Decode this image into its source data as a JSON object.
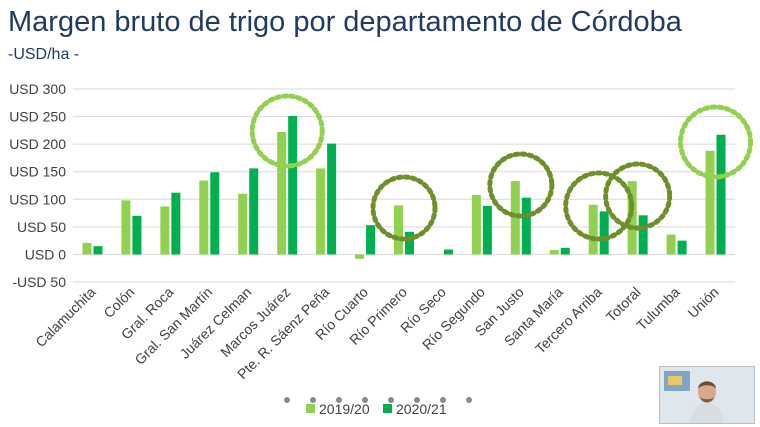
{
  "header": {
    "title": "Margen bruto de trigo por departamento de Córdoba",
    "subtitle": "-USD/ha -"
  },
  "colors": {
    "series_2019": "#92d050",
    "series_2020": "#00b050",
    "circle_light": "#92d050",
    "circle_dark": "#6f8f2a",
    "grid": "#d9d9d9",
    "text": "#404040",
    "title": "#1f3a63"
  },
  "webcam": {
    "icon": "presenter-video-thumbnail"
  },
  "chart_data": {
    "type": "bar",
    "title": "Margen bruto de trigo por departamento de Córdoba",
    "subtitle": "-USD/ha -",
    "xlabel": "",
    "ylabel": "",
    "ylim": [
      -50,
      300
    ],
    "yticks": [
      -50,
      0,
      50,
      100,
      150,
      200,
      250,
      300
    ],
    "ytick_labels": [
      "-USD 50",
      "USD 0",
      "USD 50",
      "USD 100",
      "USD 150",
      "USD 200",
      "USD 250",
      "USD 300"
    ],
    "grid": true,
    "legend_position": "bottom",
    "categories": [
      "Calamuchita",
      "Colón",
      "Gral. Roca",
      "Gral. San Martín",
      "Juárez Celman",
      "Marcos Juárez",
      "Pte. R. Sáenz Peña",
      "Río Cuarto",
      "Río Primero",
      "Río Seco",
      "Río Segundo",
      "San Justo",
      "Santa María",
      "Tercero Arriba",
      "Totoral",
      "Tulumba",
      "Unión"
    ],
    "series": [
      {
        "name": "2019/20",
        "values": [
          21,
          98,
          87,
          134,
          110,
          222,
          156,
          -8,
          89,
          0,
          108,
          133,
          8,
          90,
          133,
          36,
          188
        ]
      },
      {
        "name": "2020/21",
        "values": [
          15,
          70,
          112,
          149,
          156,
          251,
          201,
          53,
          41,
          9,
          88,
          103,
          12,
          78,
          71,
          25,
          217
        ]
      }
    ],
    "highlights": [
      {
        "category": "Marcos Juárez",
        "style": "light"
      },
      {
        "category": "Río Primero",
        "style": "dark"
      },
      {
        "category": "San Justo",
        "style": "dark"
      },
      {
        "category": "Tercero Arriba",
        "style": "dark"
      },
      {
        "category": "Totoral",
        "style": "dark"
      },
      {
        "category": "Unión",
        "style": "light"
      }
    ]
  }
}
